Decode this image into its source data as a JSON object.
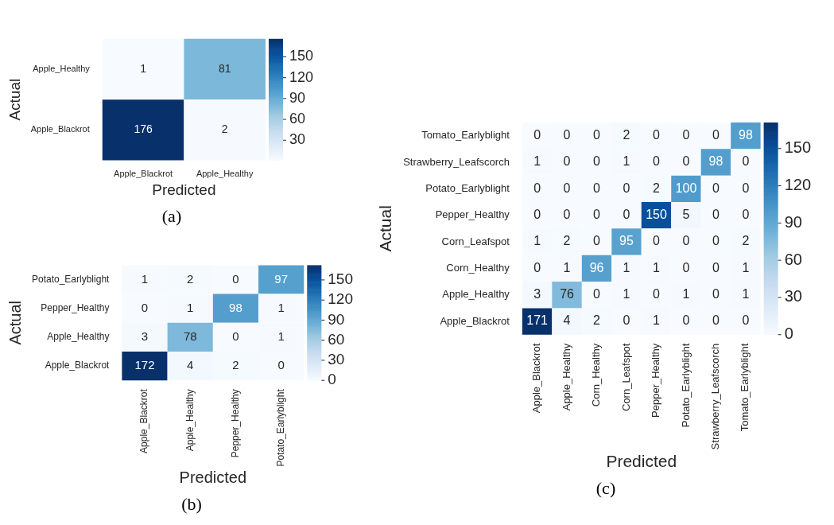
{
  "chart_data": [
    {
      "type": "heatmap",
      "title": "(a)",
      "xlabel": "Predicted",
      "ylabel": "Actual",
      "categories": [
        "Apple_Blackrot",
        "Apple_Healthy"
      ],
      "y_categories": [
        "Apple_Healthy",
        "Apple_Blackrot"
      ],
      "cells": [
        [
          1,
          81
        ],
        [
          176,
          2
        ]
      ],
      "clim": [
        1,
        176
      ],
      "cticks": [
        30,
        60,
        90,
        120,
        150
      ],
      "data_labels": true
    },
    {
      "type": "heatmap",
      "title": "(b)",
      "xlabel": "Predicted",
      "ylabel": "Actual",
      "categories": [
        "Apple_Blackrot",
        "Apple_Healthy",
        "Pepper_Healthy",
        "Potato_Earlyblight"
      ],
      "y_categories": [
        "Potato_Earlyblight",
        "Pepper_Healthy",
        "Apple_Healthy",
        "Apple_Blackrot"
      ],
      "cells": [
        [
          1,
          2,
          0,
          97
        ],
        [
          0,
          1,
          98,
          1
        ],
        [
          3,
          78,
          0,
          1
        ],
        [
          172,
          4,
          2,
          0
        ]
      ],
      "clim": [
        0,
        172
      ],
      "cticks": [
        0,
        30,
        60,
        90,
        120,
        150
      ],
      "data_labels": true
    },
    {
      "type": "heatmap",
      "title": "(c)",
      "xlabel": "Predicted",
      "ylabel": "Actual",
      "categories": [
        "Apple_Blackrot",
        "Apple_Healthy",
        "Corn_Healthy",
        "Corn_Leafspot",
        "Pepper_Healthy",
        "Potato_Earlyblight",
        "Strawberry_Leafscorch",
        "Tomato_Earlyblight"
      ],
      "y_categories": [
        "Tomato_Earlyblight",
        "Strawberry_Leafscorch",
        "Potato_Earlyblight",
        "Pepper_Healthy",
        "Corn_Leafspot",
        "Corn_Healthy",
        "Apple_Healthy",
        "Apple_Blackrot"
      ],
      "cells": [
        [
          0,
          0,
          0,
          2,
          0,
          0,
          0,
          98
        ],
        [
          1,
          0,
          0,
          1,
          0,
          0,
          98,
          0
        ],
        [
          0,
          0,
          0,
          0,
          2,
          100,
          0,
          0
        ],
        [
          0,
          0,
          0,
          0,
          150,
          5,
          0,
          0
        ],
        [
          1,
          2,
          0,
          95,
          0,
          0,
          0,
          2
        ],
        [
          0,
          1,
          96,
          1,
          1,
          0,
          0,
          1
        ],
        [
          3,
          76,
          0,
          1,
          0,
          1,
          0,
          1
        ],
        [
          171,
          4,
          2,
          0,
          1,
          0,
          0,
          0
        ]
      ],
      "clim": [
        0,
        171
      ],
      "cticks": [
        0,
        30,
        60,
        90,
        120,
        150
      ],
      "data_labels": true
    }
  ]
}
